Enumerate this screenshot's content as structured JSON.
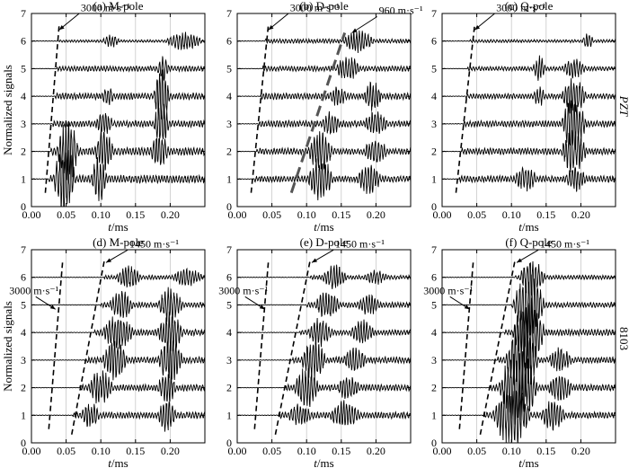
{
  "figure": {
    "side_labels": [
      "PZT",
      "8103"
    ],
    "ylabel": "Normalized signals",
    "xlabel_t": "t",
    "xlabel_unit": "/ms",
    "colors": {
      "trace": "#000000",
      "guide": "#000000",
      "slow_guide": "#555555",
      "grid": "#c8c8c8"
    }
  },
  "chart_data": [
    {
      "type": "line",
      "title": "(a) M-pole",
      "xlim": [
        0,
        0.25
      ],
      "ylim": [
        0,
        7
      ],
      "xticks": [
        "0.00",
        "0.05",
        "0.10",
        "0.15",
        "0.20"
      ],
      "yticks": [
        "0",
        "1",
        "2",
        "3",
        "4",
        "5",
        "6",
        "7"
      ],
      "grid": "vertical",
      "series": [
        {
          "offset": 1,
          "onset": 0.025,
          "bursts": [
            [
              0.03,
              0.065,
              1.4
            ],
            [
              0.085,
              0.11,
              0.9
            ]
          ],
          "base_amp": 0.15
        },
        {
          "offset": 2,
          "onset": 0.028,
          "bursts": [
            [
              0.035,
              0.07,
              1.2
            ],
            [
              0.09,
              0.12,
              0.9
            ],
            [
              0.17,
              0.2,
              0.7
            ]
          ],
          "base_amp": 0.15
        },
        {
          "offset": 3,
          "onset": 0.031,
          "bursts": [
            [
              0.09,
              0.12,
              0.5
            ],
            [
              0.175,
              0.2,
              0.9
            ]
          ],
          "base_amp": 0.12
        },
        {
          "offset": 4,
          "onset": 0.034,
          "bursts": [
            [
              0.1,
              0.12,
              0.4
            ],
            [
              0.175,
              0.2,
              1.2
            ]
          ],
          "base_amp": 0.12
        },
        {
          "offset": 5,
          "onset": 0.037,
          "bursts": [
            [
              0.18,
              0.2,
              0.5
            ]
          ],
          "base_amp": 0.1
        },
        {
          "offset": 6,
          "onset": 0.04,
          "bursts": [
            [
              0.1,
              0.13,
              0.25
            ],
            [
              0.19,
              0.25,
              0.35
            ]
          ],
          "base_amp": 0.05
        }
      ],
      "guides": [
        {
          "x": [
            0.02,
            0.04
          ],
          "y": [
            0.5,
            6.6
          ],
          "label": "3000 m·s⁻¹"
        }
      ]
    },
    {
      "type": "line",
      "title": "(b) D-pole",
      "xlim": [
        0,
        0.25
      ],
      "ylim": [
        0,
        7
      ],
      "xticks": [
        "0.00",
        "0.05",
        "0.10",
        "0.15",
        "0.20"
      ],
      "yticks": [
        "0",
        "1",
        "2",
        "3",
        "4",
        "5",
        "6",
        "7"
      ],
      "grid": "vertical",
      "series": [
        {
          "offset": 1,
          "onset": 0.025,
          "bursts": [
            [
              0.1,
              0.14,
              0.9
            ],
            [
              0.17,
              0.21,
              0.6
            ]
          ],
          "base_amp": 0.12
        },
        {
          "offset": 2,
          "onset": 0.028,
          "bursts": [
            [
              0.1,
              0.14,
              0.8
            ],
            [
              0.18,
              0.22,
              0.5
            ]
          ],
          "base_amp": 0.12
        },
        {
          "offset": 3,
          "onset": 0.031,
          "bursts": [
            [
              0.12,
              0.15,
              0.5
            ],
            [
              0.18,
              0.22,
              0.5
            ]
          ],
          "base_amp": 0.12
        },
        {
          "offset": 4,
          "onset": 0.034,
          "bursts": [
            [
              0.13,
              0.16,
              0.4
            ],
            [
              0.18,
              0.21,
              0.6
            ]
          ],
          "base_amp": 0.12
        },
        {
          "offset": 5,
          "onset": 0.037,
          "bursts": [
            [
              0.14,
              0.18,
              0.5
            ]
          ],
          "base_amp": 0.1
        },
        {
          "offset": 6,
          "onset": 0.04,
          "bursts": [
            [
              0.15,
              0.2,
              0.45
            ]
          ],
          "base_amp": 0.08
        }
      ],
      "guides": [
        {
          "x": [
            0.02,
            0.045
          ],
          "y": [
            0.5,
            6.6
          ],
          "label": "3000 m·s⁻¹"
        },
        {
          "x": [
            0.078,
            0.155
          ],
          "y": [
            0.5,
            6.3
          ],
          "label": "960 m·s⁻¹",
          "style": "thick"
        }
      ]
    },
    {
      "type": "line",
      "title": "(c) Q-pole",
      "xlim": [
        0,
        0.25
      ],
      "ylim": [
        0,
        7
      ],
      "xticks": [
        "0.00",
        "0.05",
        "0.10",
        "0.15",
        "0.20"
      ],
      "yticks": [
        "0",
        "1",
        "2",
        "3",
        "4",
        "5",
        "6",
        "7"
      ],
      "grid": "vertical",
      "series": [
        {
          "offset": 1,
          "onset": 0.025,
          "bursts": [
            [
              0.1,
              0.14,
              0.5
            ],
            [
              0.175,
              0.21,
              0.5
            ]
          ],
          "base_amp": 0.12
        },
        {
          "offset": 2,
          "onset": 0.028,
          "bursts": [
            [
              0.17,
              0.21,
              0.9
            ]
          ],
          "base_amp": 0.12
        },
        {
          "offset": 3,
          "onset": 0.031,
          "bursts": [
            [
              0.17,
              0.21,
              1.0
            ]
          ],
          "base_amp": 0.12
        },
        {
          "offset": 4,
          "onset": 0.034,
          "bursts": [
            [
              0.13,
              0.15,
              0.4
            ],
            [
              0.17,
              0.21,
              0.7
            ]
          ],
          "base_amp": 0.1
        },
        {
          "offset": 5,
          "onset": 0.037,
          "bursts": [
            [
              0.13,
              0.15,
              0.5
            ],
            [
              0.17,
              0.21,
              0.4
            ]
          ],
          "base_amp": 0.08
        },
        {
          "offset": 6,
          "onset": 0.04,
          "bursts": [
            [
              0.2,
              0.22,
              0.3
            ]
          ],
          "base_amp": 0.06
        }
      ],
      "guides": [
        {
          "x": [
            0.02,
            0.047
          ],
          "y": [
            0.5,
            6.6
          ],
          "label": "3000 m·s⁻¹"
        }
      ]
    },
    {
      "type": "line",
      "title": "(d) M-pole",
      "xlim": [
        0,
        0.25
      ],
      "ylim": [
        0,
        7
      ],
      "xticks": [
        "0.00",
        "0.05",
        "0.10",
        "0.15",
        "0.20"
      ],
      "yticks": [
        "0",
        "1",
        "2",
        "3",
        "4",
        "5",
        "6",
        "7"
      ],
      "grid": "vertical",
      "series": [
        {
          "offset": 1,
          "onset": 0.06,
          "bursts": [
            [
              0.07,
              0.1,
              0.5
            ],
            [
              0.18,
              0.21,
              0.7
            ]
          ],
          "base_amp": 0.12
        },
        {
          "offset": 2,
          "onset": 0.07,
          "bursts": [
            [
              0.08,
              0.12,
              0.7
            ],
            [
              0.18,
              0.21,
              0.7
            ]
          ],
          "base_amp": 0.12
        },
        {
          "offset": 3,
          "onset": 0.08,
          "bursts": [
            [
              0.1,
              0.14,
              0.8
            ],
            [
              0.18,
              0.22,
              0.9
            ]
          ],
          "base_amp": 0.12
        },
        {
          "offset": 4,
          "onset": 0.09,
          "bursts": [
            [
              0.1,
              0.15,
              0.7
            ],
            [
              0.18,
              0.22,
              0.8
            ]
          ],
          "base_amp": 0.12
        },
        {
          "offset": 5,
          "onset": 0.1,
          "bursts": [
            [
              0.11,
              0.15,
              0.6
            ],
            [
              0.18,
              0.22,
              0.7
            ]
          ],
          "base_amp": 0.1
        },
        {
          "offset": 6,
          "onset": 0.105,
          "bursts": [
            [
              0.12,
              0.16,
              0.5
            ],
            [
              0.2,
              0.25,
              0.35
            ]
          ],
          "base_amp": 0.08
        }
      ],
      "guides": [
        {
          "x": [
            0.025,
            0.045
          ],
          "y": [
            0.5,
            6.6
          ],
          "label": "3000 m·s⁻¹"
        },
        {
          "x": [
            0.058,
            0.105
          ],
          "y": [
            0.3,
            6.6
          ],
          "label": "1450 m·s⁻¹"
        }
      ]
    },
    {
      "type": "line",
      "title": "(e) D-pole",
      "xlim": [
        0,
        0.25
      ],
      "ylim": [
        0,
        7
      ],
      "xticks": [
        "0.00",
        "0.05",
        "0.10",
        "0.15",
        "0.20"
      ],
      "yticks": [
        "0",
        "1",
        "2",
        "3",
        "4",
        "5",
        "6",
        "7"
      ],
      "grid": "vertical",
      "series": [
        {
          "offset": 1,
          "onset": 0.06,
          "bursts": [
            [
              0.07,
              0.11,
              0.5
            ],
            [
              0.13,
              0.18,
              0.6
            ]
          ],
          "base_amp": 0.12
        },
        {
          "offset": 2,
          "onset": 0.07,
          "bursts": [
            [
              0.08,
              0.12,
              0.8
            ],
            [
              0.14,
              0.18,
              0.5
            ]
          ],
          "base_amp": 0.12
        },
        {
          "offset": 3,
          "onset": 0.08,
          "bursts": [
            [
              0.09,
              0.13,
              0.8
            ],
            [
              0.15,
              0.19,
              0.5
            ]
          ],
          "base_amp": 0.12
        },
        {
          "offset": 4,
          "onset": 0.09,
          "bursts": [
            [
              0.1,
              0.14,
              0.6
            ],
            [
              0.16,
              0.2,
              0.5
            ]
          ],
          "base_amp": 0.1
        },
        {
          "offset": 5,
          "onset": 0.1,
          "bursts": [
            [
              0.11,
              0.15,
              0.6
            ],
            [
              0.17,
              0.21,
              0.4
            ]
          ],
          "base_amp": 0.1
        },
        {
          "offset": 6,
          "onset": 0.105,
          "bursts": [
            [
              0.12,
              0.16,
              0.5
            ],
            [
              0.18,
              0.22,
              0.3
            ]
          ],
          "base_amp": 0.08
        }
      ],
      "guides": [
        {
          "x": [
            0.025,
            0.045
          ],
          "y": [
            0.5,
            6.6
          ],
          "label": "3000 m·s⁻¹"
        },
        {
          "x": [
            0.055,
            0.105
          ],
          "y": [
            0.3,
            6.6
          ],
          "label": "1450 m·s⁻¹"
        }
      ]
    },
    {
      "type": "line",
      "title": "(f) Q-pole",
      "xlim": [
        0,
        0.25
      ],
      "ylim": [
        0,
        7
      ],
      "xticks": [
        "0.00",
        "0.05",
        "0.10",
        "0.15",
        "0.20"
      ],
      "yticks": [
        "0",
        "1",
        "2",
        "3",
        "4",
        "5",
        "6",
        "7"
      ],
      "grid": "vertical",
      "series": [
        {
          "offset": 1,
          "onset": 0.06,
          "bursts": [
            [
              0.07,
              0.13,
              1.2
            ],
            [
              0.14,
              0.18,
              0.6
            ]
          ],
          "base_amp": 0.12
        },
        {
          "offset": 2,
          "onset": 0.07,
          "bursts": [
            [
              0.08,
              0.14,
              1.5
            ],
            [
              0.15,
              0.19,
              0.6
            ]
          ],
          "base_amp": 0.12
        },
        {
          "offset": 3,
          "onset": 0.08,
          "bursts": [
            [
              0.09,
              0.14,
              1.6
            ],
            [
              0.15,
              0.19,
              0.5
            ]
          ],
          "base_amp": 0.12
        },
        {
          "offset": 4,
          "onset": 0.09,
          "bursts": [
            [
              0.1,
              0.15,
              1.4
            ]
          ],
          "base_amp": 0.12
        },
        {
          "offset": 5,
          "onset": 0.1,
          "bursts": [
            [
              0.1,
              0.15,
              1.2
            ]
          ],
          "base_amp": 0.1
        },
        {
          "offset": 6,
          "onset": 0.105,
          "bursts": [
            [
              0.11,
              0.15,
              0.8
            ]
          ],
          "base_amp": 0.08
        }
      ],
      "guides": [
        {
          "x": [
            0.025,
            0.045
          ],
          "y": [
            0.5,
            6.6
          ],
          "label": "3000 m·s⁻¹"
        },
        {
          "x": [
            0.055,
            0.105
          ],
          "y": [
            0.3,
            6.6
          ],
          "label": "1450 m·s⁻¹"
        }
      ]
    }
  ]
}
